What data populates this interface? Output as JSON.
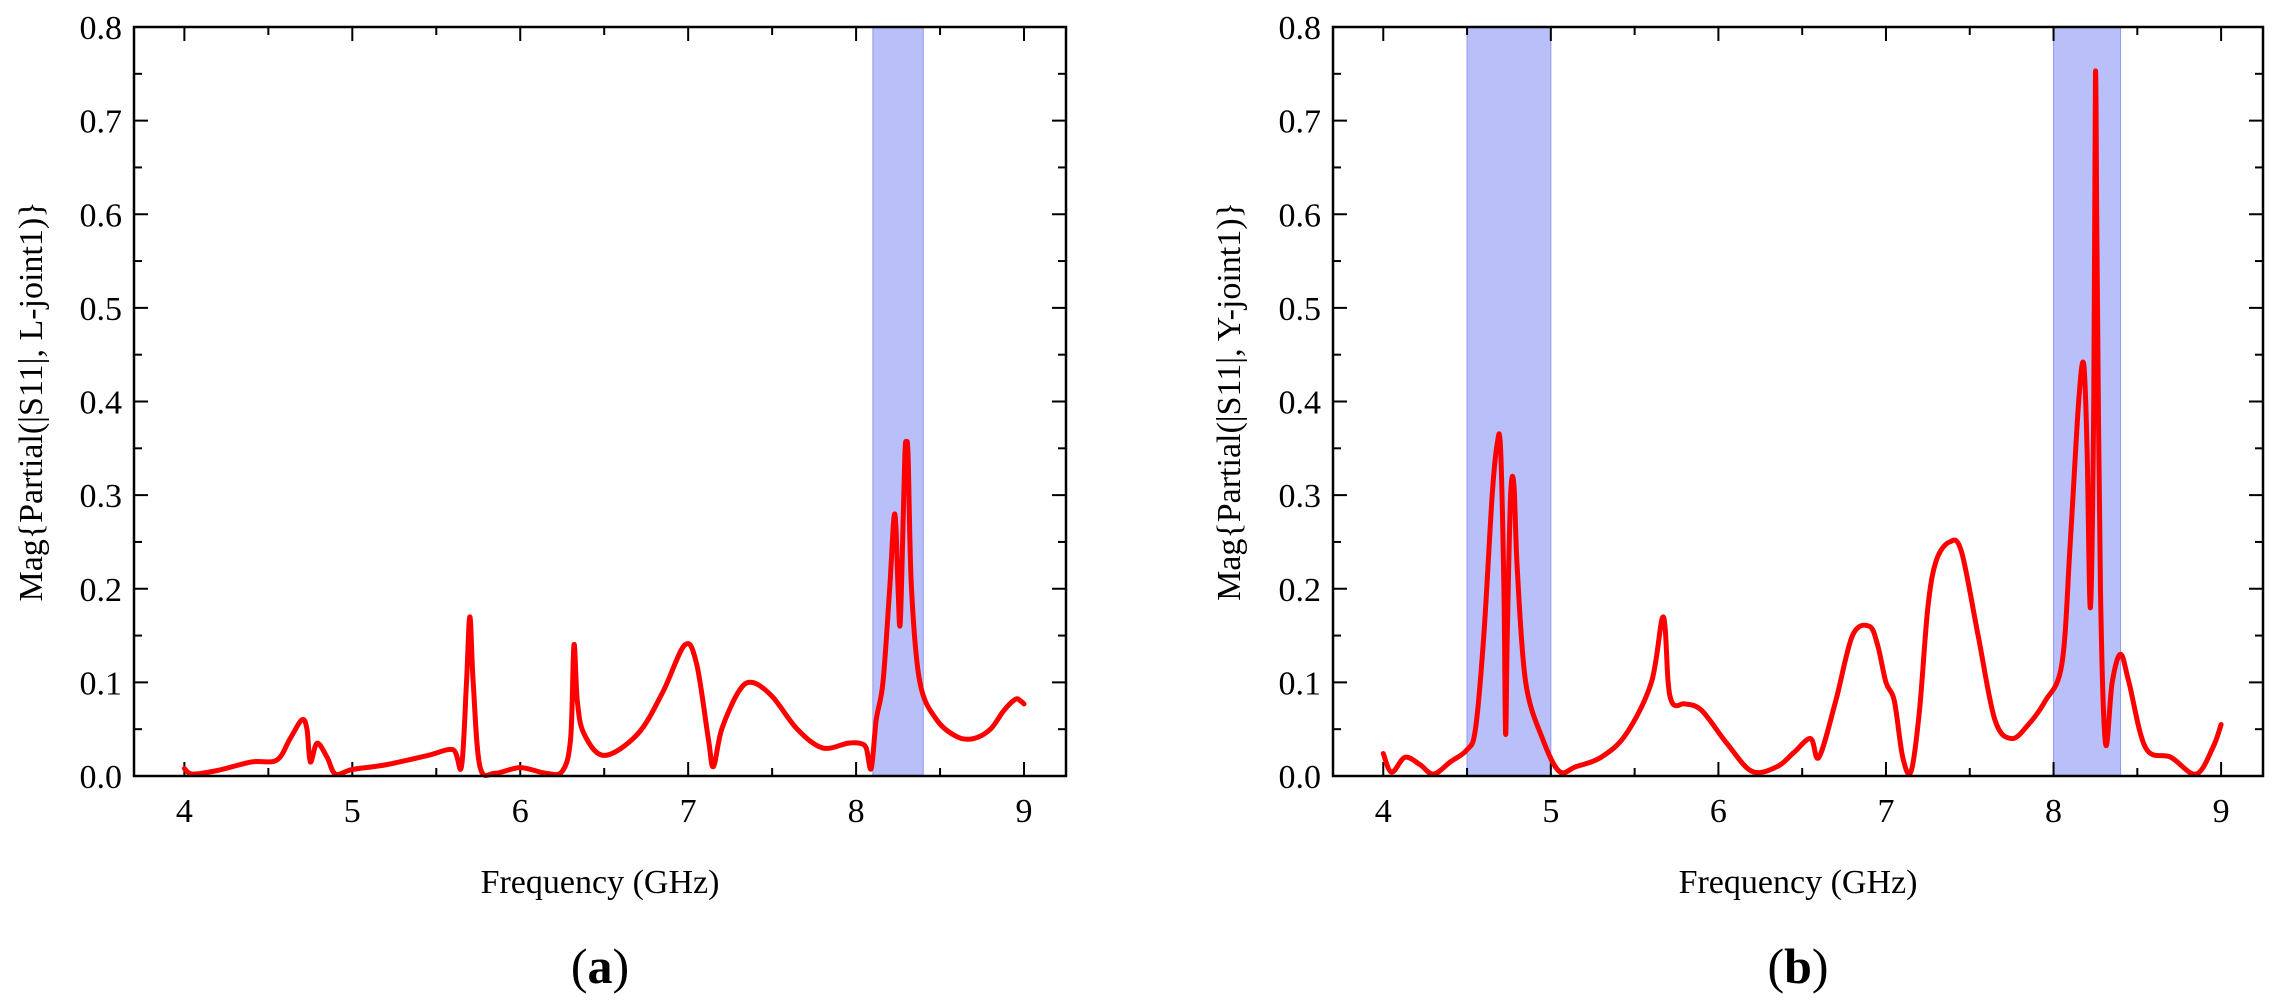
{
  "chart_data": [
    {
      "type": "line",
      "panel_label_open": "(",
      "panel_label_letter": "a",
      "panel_label_close": ")",
      "xlabel": "Frequency (GHz)",
      "ylabel": "Mag{Partial(|S11|, L-joint1)}",
      "xlim": [
        3.7,
        9.25
      ],
      "ylim": [
        0,
        0.8
      ],
      "x_ticks": [
        4,
        5,
        6,
        7,
        8,
        9
      ],
      "y_ticks": [
        "0.0",
        "0.1",
        "0.2",
        "0.3",
        "0.4",
        "0.5",
        "0.6",
        "0.7",
        "0.8"
      ],
      "grid": false,
      "highlight_bands": [
        [
          8.1,
          8.4
        ]
      ],
      "band_color": "#b9bff9",
      "line_color": "#ff0000",
      "series": [
        {
          "name": "Mag{Partial(|S11|, L-joint1)}",
          "x": [
            4.0,
            4.05,
            4.2,
            4.4,
            4.55,
            4.63,
            4.7,
            4.73,
            4.75,
            4.79,
            4.85,
            4.9,
            5.0,
            5.2,
            5.45,
            5.6,
            5.65,
            5.68,
            5.7,
            5.72,
            5.76,
            5.85,
            6.0,
            6.15,
            6.25,
            6.3,
            6.32,
            6.34,
            6.38,
            6.5,
            6.7,
            6.85,
            6.98,
            7.05,
            7.12,
            7.15,
            7.2,
            7.3,
            7.38,
            7.5,
            7.65,
            7.8,
            7.95,
            8.02,
            8.06,
            8.09,
            8.12,
            8.16,
            8.2,
            8.23,
            8.25,
            8.26,
            8.27,
            8.29,
            8.3,
            8.31,
            8.33,
            8.38,
            8.48,
            8.6,
            8.7,
            8.8,
            8.88,
            8.95,
            8.98,
            9.0
          ],
          "y": [
            0.008,
            0.002,
            0.006,
            0.015,
            0.017,
            0.04,
            0.06,
            0.05,
            0.015,
            0.035,
            0.02,
            0.002,
            0.007,
            0.012,
            0.022,
            0.028,
            0.01,
            0.1,
            0.17,
            0.1,
            0.01,
            0.003,
            0.009,
            0.003,
            0.005,
            0.04,
            0.14,
            0.08,
            0.045,
            0.022,
            0.045,
            0.09,
            0.14,
            0.12,
            0.04,
            0.01,
            0.05,
            0.09,
            0.1,
            0.085,
            0.05,
            0.03,
            0.035,
            0.035,
            0.03,
            0.008,
            0.06,
            0.1,
            0.2,
            0.28,
            0.2,
            0.16,
            0.2,
            0.34,
            0.355,
            0.34,
            0.2,
            0.1,
            0.06,
            0.042,
            0.04,
            0.05,
            0.07,
            0.082,
            0.08,
            0.077
          ]
        }
      ]
    },
    {
      "type": "line",
      "panel_label_open": "(",
      "panel_label_letter": "b",
      "panel_label_close": ")",
      "xlabel": "Frequency (GHz)",
      "ylabel": "Mag{Partial(|S11|, Y-joint1)}",
      "xlim": [
        3.7,
        9.25
      ],
      "ylim": [
        0,
        0.8
      ],
      "x_ticks": [
        4,
        5,
        6,
        7,
        8,
        9
      ],
      "y_ticks": [
        "0.0",
        "0.1",
        "0.2",
        "0.3",
        "0.4",
        "0.5",
        "0.6",
        "0.7",
        "0.8"
      ],
      "grid": false,
      "highlight_bands": [
        [
          4.5,
          5.0
        ],
        [
          8.0,
          8.4
        ]
      ],
      "band_color": "#b9bff9",
      "line_color": "#ff0000",
      "series": [
        {
          "name": "Mag{Partial(|S11|, Y-joint1)}",
          "x": [
            4.0,
            4.05,
            4.13,
            4.22,
            4.3,
            4.4,
            4.5,
            4.55,
            4.6,
            4.65,
            4.68,
            4.7,
            4.72,
            4.73,
            4.74,
            4.76,
            4.78,
            4.8,
            4.85,
            4.95,
            5.05,
            5.15,
            5.3,
            5.45,
            5.6,
            5.67,
            5.7,
            5.72,
            5.75,
            5.8,
            5.9,
            6.05,
            6.2,
            6.35,
            6.45,
            6.55,
            6.6,
            6.7,
            6.8,
            6.9,
            6.95,
            7.0,
            7.05,
            7.1,
            7.15,
            7.2,
            7.25,
            7.3,
            7.38,
            7.45,
            7.55,
            7.65,
            7.75,
            7.85,
            7.95,
            8.05,
            8.1,
            8.15,
            8.18,
            8.2,
            8.22,
            8.24,
            8.25,
            8.26,
            8.28,
            8.31,
            8.35,
            8.4,
            8.45,
            8.55,
            8.7,
            8.85,
            8.95,
            9.0
          ],
          "y": [
            0.024,
            0.004,
            0.02,
            0.012,
            0.002,
            0.015,
            0.028,
            0.05,
            0.15,
            0.3,
            0.355,
            0.35,
            0.2,
            0.045,
            0.15,
            0.3,
            0.31,
            0.22,
            0.1,
            0.04,
            0.005,
            0.01,
            0.02,
            0.045,
            0.1,
            0.17,
            0.1,
            0.08,
            0.075,
            0.077,
            0.07,
            0.035,
            0.005,
            0.01,
            0.025,
            0.04,
            0.02,
            0.08,
            0.15,
            0.16,
            0.14,
            0.1,
            0.08,
            0.02,
            0.005,
            0.07,
            0.18,
            0.23,
            0.25,
            0.24,
            0.15,
            0.06,
            0.04,
            0.055,
            0.08,
            0.12,
            0.25,
            0.4,
            0.44,
            0.35,
            0.18,
            0.4,
            0.75,
            0.55,
            0.2,
            0.035,
            0.1,
            0.13,
            0.1,
            0.03,
            0.02,
            0.002,
            0.03,
            0.055
          ]
        }
      ]
    }
  ]
}
